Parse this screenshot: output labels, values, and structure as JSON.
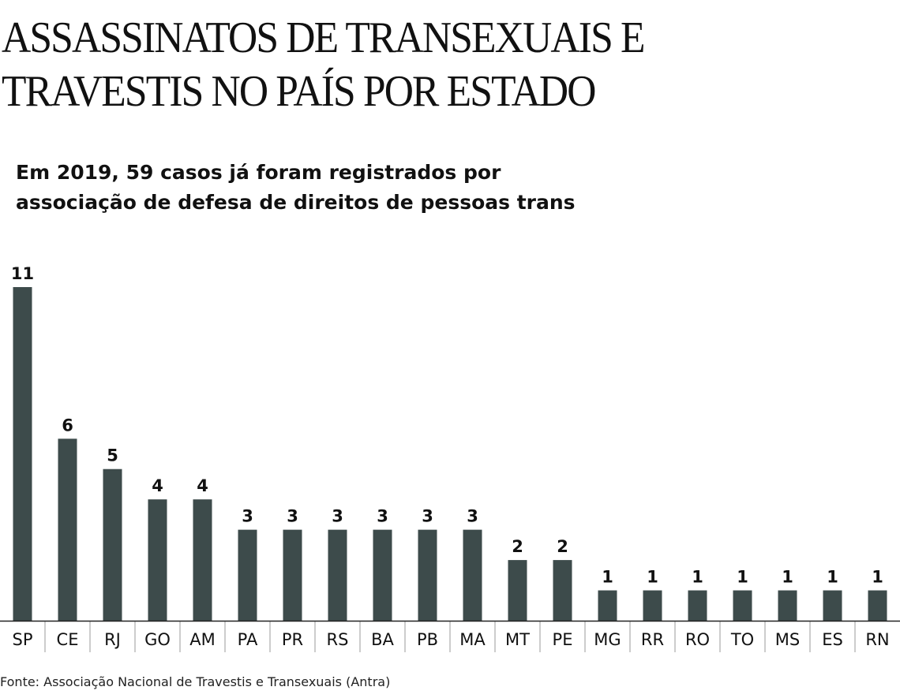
{
  "title_line1": "ASSASSINATOS DE TRANSEXUAIS E",
  "title_line2": "TRAVESTIS NO PAÍS POR ESTADO",
  "subtitle_line1": "Em 2019, 59 casos já foram registrados por",
  "subtitle_line2": "associação de defesa de direitos de pessoas trans",
  "source": "Fonte: Associação Nacional de Travestis e Transexuais (Antra)",
  "colors": {
    "bar": "#3d4b4b",
    "axis": "#222222",
    "text": "#111111"
  },
  "chart_data": {
    "type": "bar",
    "title": "ASSASSINATOS DE TRANSEXUAIS E TRAVESTIS NO PAÍS POR ESTADO",
    "xlabel": "",
    "ylabel": "",
    "ylim": [
      0,
      11
    ],
    "grid": false,
    "categories": [
      "SP",
      "CE",
      "RJ",
      "GO",
      "AM",
      "PA",
      "PR",
      "RS",
      "BA",
      "PB",
      "MA",
      "MT",
      "PE",
      "MG",
      "RR",
      "RO",
      "TO",
      "MS",
      "ES",
      "RN"
    ],
    "values": [
      11,
      6,
      5,
      4,
      4,
      3,
      3,
      3,
      3,
      3,
      3,
      2,
      2,
      1,
      1,
      1,
      1,
      1,
      1,
      1
    ]
  }
}
